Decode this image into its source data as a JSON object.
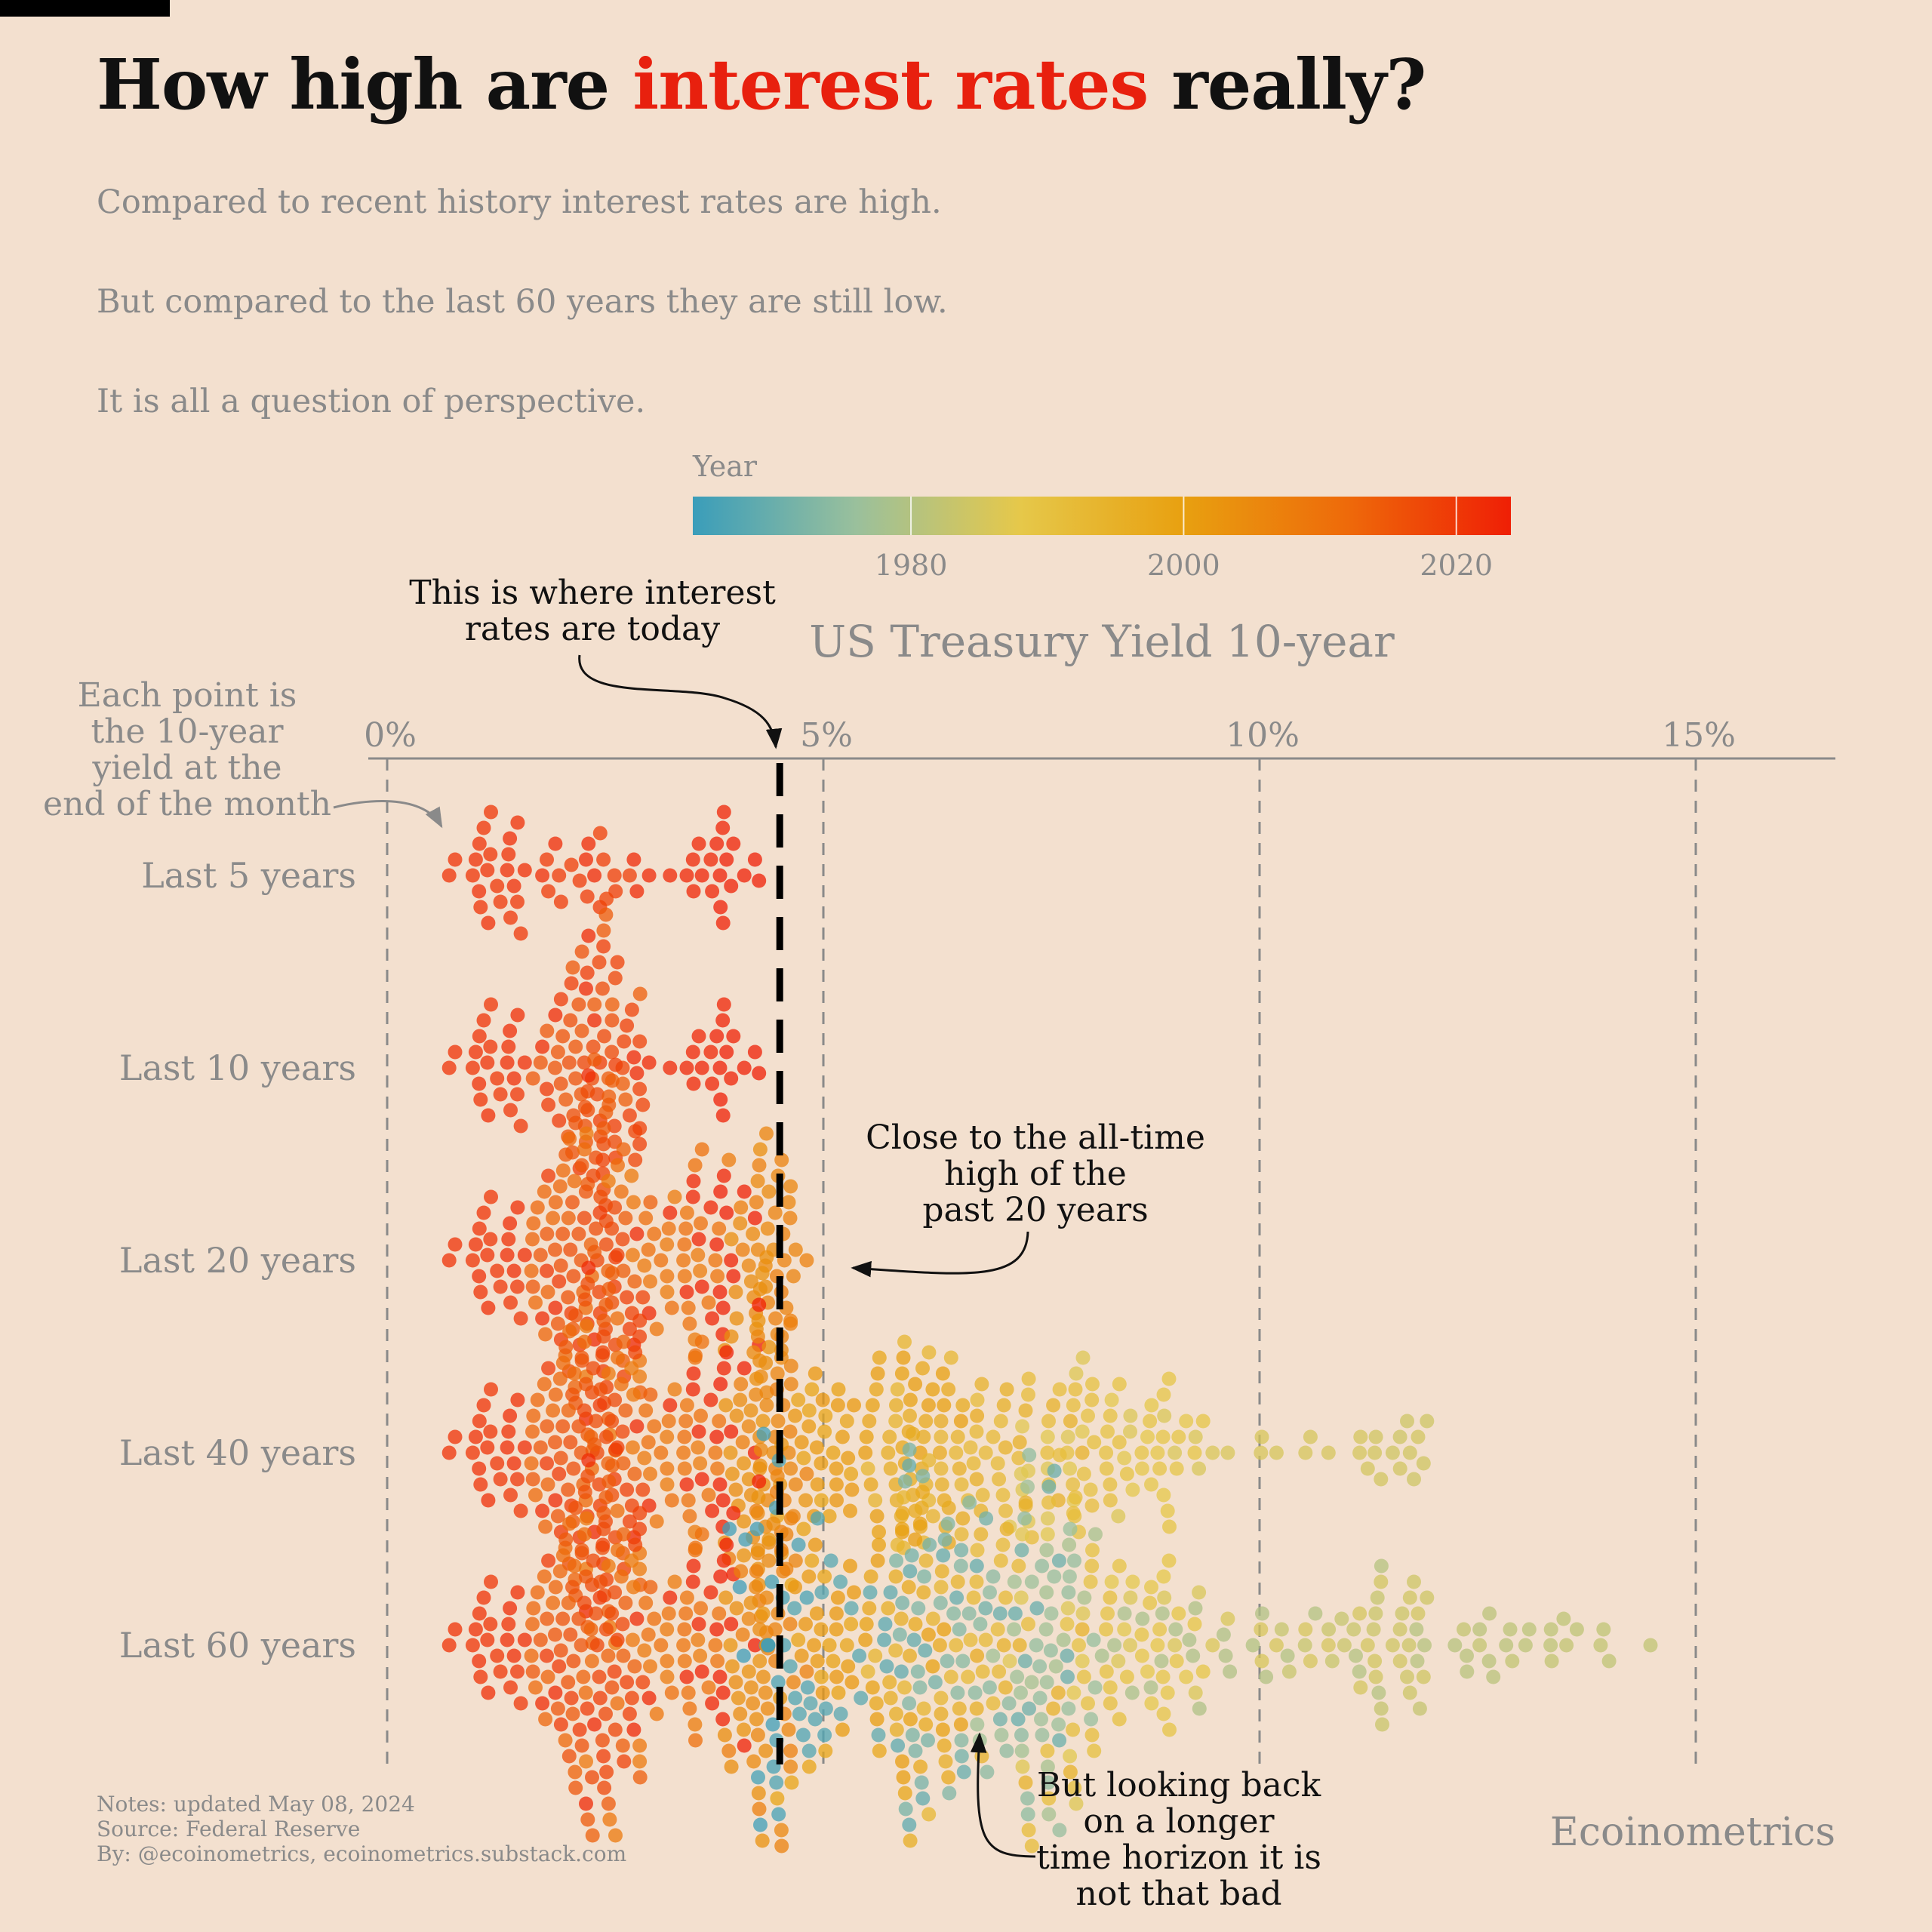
{
  "title": {
    "before": "How high are ",
    "highlight": "interest rates",
    "after": " really?"
  },
  "subtitle_lines": [
    "Compared to recent history interest rates are high.",
    "But compared to the last 60 years they are still low.",
    "It is all a question of perspective."
  ],
  "colors": {
    "background": "#f3e0cf",
    "title_highlight": "#e8200e",
    "muted_text": "#8a8a8a",
    "gradient_stops": [
      "#3a9dba",
      "#9ac09c",
      "#e6c84a",
      "#e8a010",
      "#ee6a0a",
      "#ef1f05"
    ]
  },
  "chart_data": {
    "type": "beeswarm",
    "title": "US Treasury Yield 10-year",
    "x_axis": {
      "ticks": [
        0,
        5,
        10,
        15
      ],
      "tick_labels": [
        "0%",
        "5%",
        "10%",
        "15%"
      ],
      "range": [
        -0.2,
        16.6
      ],
      "position": "top",
      "grid": "dashed vertical"
    },
    "color_scale": {
      "label": "Year",
      "range": [
        1964,
        2024
      ],
      "ticks": [
        1980,
        2000,
        2020
      ],
      "tick_labels": [
        "1980",
        "2000",
        "2020"
      ]
    },
    "current_value": 4.5,
    "series": [
      {
        "name": "Last 5 years",
        "start_year": 2019
      },
      {
        "name": "Last 10 years",
        "start_year": 2014
      },
      {
        "name": "Last 20 years",
        "start_year": 2004
      },
      {
        "name": "Last 40 years",
        "start_year": 1984
      },
      {
        "name": "Last 60 years",
        "start_year": 1964
      }
    ],
    "monthly_yields": {
      "start": "1964-05",
      "end": "2024-04",
      "by_year": [
        [
          1964,
          4.2,
          4.2
        ],
        [
          1965,
          4.2,
          4.6
        ],
        [
          1966,
          4.6,
          4.9
        ],
        [
          1967,
          4.6,
          5.7
        ],
        [
          1968,
          5.5,
          6.2
        ],
        [
          1969,
          6.2,
          7.9
        ],
        [
          1970,
          7.8,
          6.4
        ],
        [
          1971,
          6.2,
          5.9
        ],
        [
          1972,
          6.0,
          6.4
        ],
        [
          1973,
          6.5,
          6.9
        ],
        [
          1974,
          7.0,
          7.6
        ],
        [
          1975,
          7.6,
          8.0
        ],
        [
          1976,
          7.8,
          6.9
        ],
        [
          1977,
          7.2,
          7.7
        ],
        [
          1978,
          7.9,
          9.1
        ],
        [
          1979,
          9.0,
          10.4
        ],
        [
          1980,
          11.0,
          12.8
        ],
        [
          1981,
          12.5,
          13.9
        ],
        [
          1982,
          14.3,
          10.5
        ],
        [
          1983,
          10.5,
          11.8
        ],
        [
          1984,
          11.8,
          11.5
        ],
        [
          1985,
          11.4,
          9.3
        ],
        [
          1986,
          9.2,
          7.2
        ],
        [
          1987,
          7.1,
          8.9
        ],
        [
          1988,
          8.7,
          9.1
        ],
        [
          1989,
          9.1,
          7.8
        ],
        [
          1990,
          8.2,
          8.1
        ],
        [
          1991,
          8.0,
          7.1
        ],
        [
          1992,
          7.0,
          6.8
        ],
        [
          1993,
          6.6,
          5.7
        ],
        [
          1994,
          5.8,
          7.8
        ],
        [
          1995,
          7.7,
          5.7
        ],
        [
          1996,
          5.7,
          6.4
        ],
        [
          1997,
          6.5,
          5.8
        ],
        [
          1998,
          5.6,
          4.6
        ],
        [
          1999,
          4.7,
          6.3
        ],
        [
          2000,
          6.6,
          5.2
        ],
        [
          2001,
          5.1,
          5.1
        ],
        [
          2002,
          5.0,
          4.0
        ],
        [
          2003,
          4.0,
          4.3
        ],
        [
          2004,
          4.1,
          4.2
        ],
        [
          2005,
          4.2,
          4.5
        ],
        [
          2006,
          4.4,
          4.6
        ],
        [
          2007,
          4.7,
          4.1
        ],
        [
          2008,
          3.7,
          2.4
        ],
        [
          2009,
          2.5,
          3.6
        ],
        [
          2010,
          3.7,
          3.3
        ],
        [
          2011,
          3.4,
          2.0
        ],
        [
          2012,
          2.0,
          1.7
        ],
        [
          2013,
          1.9,
          2.9
        ],
        [
          2014,
          2.8,
          2.2
        ],
        [
          2015,
          1.9,
          2.2
        ],
        [
          2016,
          2.1,
          2.4
        ],
        [
          2017,
          2.5,
          2.4
        ],
        [
          2018,
          2.6,
          2.8
        ],
        [
          2019,
          2.7,
          1.9
        ],
        [
          2020,
          1.6,
          0.9
        ],
        [
          2021,
          1.0,
          1.5
        ],
        [
          2022,
          1.8,
          3.8
        ],
        [
          2023,
          3.6,
          4.0
        ],
        [
          2024,
          4.0,
          4.6
        ]
      ]
    }
  },
  "annotations": {
    "today": [
      "This is where interest",
      "rates are today"
    ],
    "each_point": [
      "Each point is",
      "the 10-year",
      "yield at the",
      "end of the month"
    ],
    "all_time_high": [
      "Close to the all-time",
      "high of the",
      "past 20 years"
    ],
    "longer_horizon": [
      "But looking back",
      "on a longer",
      "time horizon it is",
      "not that bad"
    ]
  },
  "footer": {
    "notes": "Notes: updated May 08, 2024",
    "source": "Source: Federal Reserve",
    "by": "By: @ecoinometrics, ecoinometrics.substack.com",
    "brand": "Ecoinometrics"
  }
}
